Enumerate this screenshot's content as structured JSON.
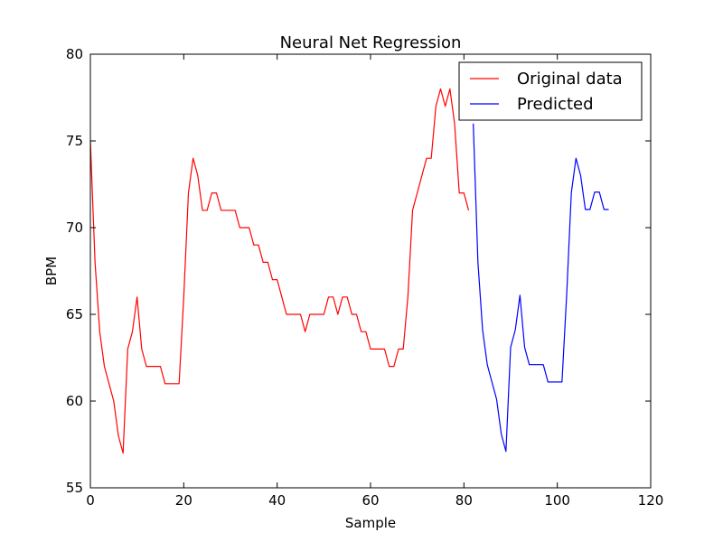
{
  "chart_data": {
    "type": "line",
    "title": "Neural Net Regression",
    "xlabel": "Sample",
    "ylabel": "BPM",
    "xlim": [
      0,
      120
    ],
    "ylim": [
      55,
      80
    ],
    "xticks": [
      0,
      20,
      40,
      60,
      80,
      100,
      120
    ],
    "yticks": [
      55,
      60,
      65,
      70,
      75,
      80
    ],
    "grid": false,
    "legend_position": "top-right",
    "series": [
      {
        "name": "Original data",
        "color": "#ff0000",
        "x": [
          0,
          1,
          2,
          3,
          4,
          5,
          6,
          7,
          8,
          9,
          10,
          11,
          12,
          13,
          14,
          15,
          16,
          17,
          18,
          19,
          20,
          21,
          22,
          23,
          24,
          25,
          26,
          27,
          28,
          29,
          30,
          31,
          32,
          33,
          34,
          35,
          36,
          37,
          38,
          39,
          40,
          41,
          42,
          43,
          44,
          45,
          46,
          47,
          48,
          49,
          50,
          51,
          52,
          53,
          54,
          55,
          56,
          57,
          58,
          59,
          60,
          61,
          62,
          63,
          64,
          65,
          66,
          67,
          68,
          69,
          70,
          71,
          72,
          73,
          74,
          75,
          76,
          77,
          78,
          79,
          80,
          81
        ],
        "y": [
          75,
          68,
          64,
          62,
          61,
          60,
          58,
          57,
          63,
          64,
          66,
          63,
          62,
          62,
          62,
          62,
          61,
          61,
          61,
          61,
          66,
          72,
          74,
          73,
          71,
          71,
          72,
          72,
          71,
          71,
          71,
          71,
          70,
          70,
          70,
          69,
          69,
          68,
          68,
          67,
          67,
          66,
          65,
          65,
          65,
          65,
          64,
          65,
          65,
          65,
          65,
          66,
          66,
          65,
          66,
          66,
          65,
          65,
          64,
          64,
          63,
          63,
          63,
          63,
          62,
          62,
          63,
          63,
          66,
          71,
          72,
          73,
          74,
          74,
          77,
          78,
          77,
          78,
          76,
          72,
          72,
          71
        ]
      },
      {
        "name": "Predicted",
        "color": "#0000ff",
        "x": [
          82,
          83,
          84,
          85,
          86,
          87,
          88,
          89,
          90,
          91,
          92,
          93,
          94,
          95,
          96,
          97,
          98,
          99,
          100,
          101,
          102,
          103,
          104,
          105,
          106,
          107,
          108,
          109,
          110,
          111
        ],
        "y": [
          76,
          68,
          64.1,
          62.1,
          61.1,
          60.1,
          58.1,
          57.1,
          63.1,
          64.1,
          66.1,
          63.1,
          62.1,
          62.1,
          62.1,
          62.1,
          61.1,
          61.1,
          61.1,
          61.1,
          66.1,
          72.0,
          74.0,
          73.0,
          71.05,
          71.05,
          72.05,
          72.05,
          71.05,
          71.05
        ]
      }
    ]
  }
}
